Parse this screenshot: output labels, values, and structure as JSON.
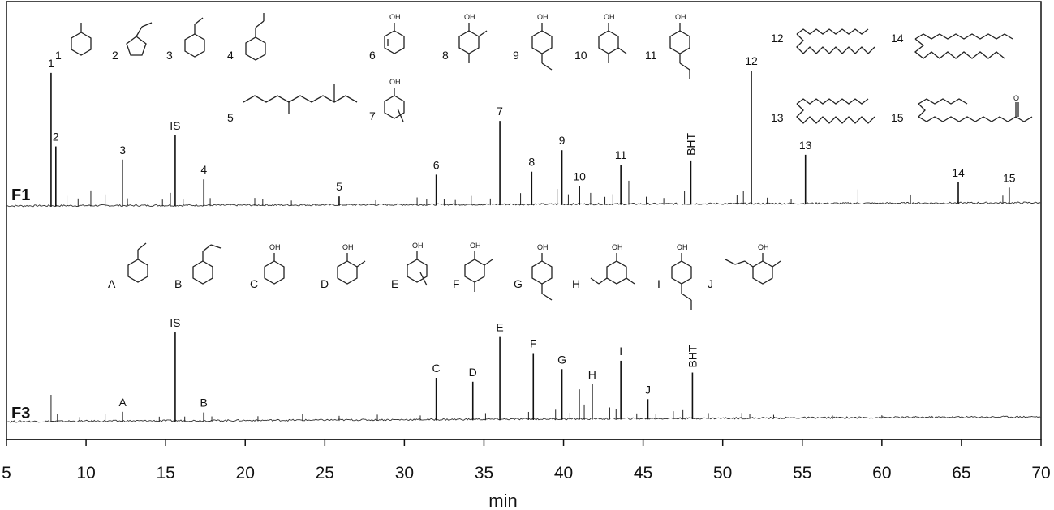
{
  "chart_data": {
    "type": "line",
    "xlabel": "min",
    "xlim": [
      5,
      70
    ],
    "x_ticks": [
      5,
      10,
      15,
      20,
      25,
      30,
      35,
      40,
      45,
      50,
      55,
      60,
      65,
      70
    ],
    "x_tick_labels": [
      "5",
      "10",
      "15",
      "20",
      "25",
      "30",
      "35",
      "40",
      "45",
      "50",
      "55",
      "60",
      "65",
      "70"
    ],
    "traces": [
      {
        "name": "F1",
        "labeled_peaks": [
          {
            "label": "1",
            "x": 7.8,
            "height": 1.0
          },
          {
            "label": "2",
            "x": 8.1,
            "height": 0.45
          },
          {
            "label": "3",
            "x": 12.3,
            "height": 0.35
          },
          {
            "label": "IS",
            "x": 15.6,
            "height": 0.53
          },
          {
            "label": "4",
            "x": 17.4,
            "height": 0.2
          },
          {
            "label": "5",
            "x": 25.9,
            "height": 0.07
          },
          {
            "label": "6",
            "x": 32.0,
            "height": 0.23
          },
          {
            "label": "7",
            "x": 36.0,
            "height": 0.63
          },
          {
            "label": "8",
            "x": 38.0,
            "height": 0.25
          },
          {
            "label": "9",
            "x": 39.9,
            "height": 0.41
          },
          {
            "label": "10",
            "x": 41.0,
            "height": 0.14
          },
          {
            "label": "11",
            "x": 43.6,
            "height": 0.3
          },
          {
            "label": "BHT",
            "x": 48.0,
            "height": 0.33
          },
          {
            "label": "12",
            "x": 51.8,
            "height": 1.0
          },
          {
            "label": "13",
            "x": 55.2,
            "height": 0.37
          },
          {
            "label": "14",
            "x": 64.8,
            "height": 0.16
          },
          {
            "label": "15",
            "x": 68.0,
            "height": 0.12
          }
        ],
        "minor_peaks": [
          [
            8.8,
            0.08
          ],
          [
            9.5,
            0.06
          ],
          [
            10.3,
            0.12
          ],
          [
            11.2,
            0.09
          ],
          [
            12.6,
            0.06
          ],
          [
            14.8,
            0.05
          ],
          [
            15.3,
            0.1
          ],
          [
            16.1,
            0.05
          ],
          [
            17.8,
            0.06
          ],
          [
            20.6,
            0.06
          ],
          [
            21.1,
            0.05
          ],
          [
            22.9,
            0.04
          ],
          [
            28.2,
            0.04
          ],
          [
            30.8,
            0.06
          ],
          [
            31.4,
            0.05
          ],
          [
            32.5,
            0.05
          ],
          [
            33.2,
            0.04
          ],
          [
            34.2,
            0.07
          ],
          [
            35.4,
            0.05
          ],
          [
            37.3,
            0.09
          ],
          [
            39.6,
            0.12
          ],
          [
            40.3,
            0.08
          ],
          [
            41.7,
            0.09
          ],
          [
            42.6,
            0.06
          ],
          [
            43.1,
            0.08
          ],
          [
            44.1,
            0.18
          ],
          [
            45.2,
            0.06
          ],
          [
            46.3,
            0.05
          ],
          [
            47.6,
            0.1
          ],
          [
            50.9,
            0.07
          ],
          [
            51.3,
            0.1
          ],
          [
            52.8,
            0.05
          ],
          [
            54.3,
            0.04
          ],
          [
            58.5,
            0.11
          ],
          [
            61.8,
            0.07
          ],
          [
            67.6,
            0.06
          ]
        ]
      },
      {
        "name": "F3",
        "labeled_peaks": [
          {
            "label": "A",
            "x": 12.3,
            "height": 0.1
          },
          {
            "label": "IS",
            "x": 15.6,
            "height": 0.88
          },
          {
            "label": "B",
            "x": 17.4,
            "height": 0.09
          },
          {
            "label": "C",
            "x": 32.0,
            "height": 0.42
          },
          {
            "label": "D",
            "x": 34.3,
            "height": 0.38
          },
          {
            "label": "E",
            "x": 36.0,
            "height": 0.82
          },
          {
            "label": "F",
            "x": 38.1,
            "height": 0.66
          },
          {
            "label": "G",
            "x": 39.9,
            "height": 0.5
          },
          {
            "label": "H",
            "x": 41.8,
            "height": 0.35
          },
          {
            "label": "I",
            "x": 43.6,
            "height": 0.58
          },
          {
            "label": "J",
            "x": 45.3,
            "height": 0.2
          },
          {
            "label": "BHT",
            "x": 48.1,
            "height": 0.46
          }
        ],
        "minor_peaks": [
          [
            7.8,
            0.27
          ],
          [
            8.2,
            0.08
          ],
          [
            9.6,
            0.05
          ],
          [
            11.2,
            0.08
          ],
          [
            14.6,
            0.05
          ],
          [
            16.2,
            0.05
          ],
          [
            17.9,
            0.05
          ],
          [
            20.8,
            0.05
          ],
          [
            23.6,
            0.07
          ],
          [
            25.9,
            0.05
          ],
          [
            28.3,
            0.06
          ],
          [
            31.0,
            0.05
          ],
          [
            35.1,
            0.07
          ],
          [
            37.8,
            0.08
          ],
          [
            39.5,
            0.1
          ],
          [
            40.4,
            0.07
          ],
          [
            41.0,
            0.3
          ],
          [
            41.3,
            0.15
          ],
          [
            42.9,
            0.12
          ],
          [
            43.3,
            0.1
          ],
          [
            44.6,
            0.06
          ],
          [
            45.8,
            0.05
          ],
          [
            46.9,
            0.08
          ],
          [
            47.5,
            0.09
          ],
          [
            49.1,
            0.06
          ],
          [
            51.2,
            0.06
          ],
          [
            51.7,
            0.05
          ],
          [
            53.2,
            0.04
          ],
          [
            56.9,
            0.03
          ],
          [
            60.0,
            0.03
          ]
        ]
      }
    ]
  },
  "structure_labels": {
    "f1_numbers": [
      "1",
      "2",
      "3",
      "4",
      "5",
      "6",
      "7",
      "8",
      "9",
      "10",
      "11",
      "12",
      "13",
      "14",
      "15"
    ],
    "f3_letters": [
      "A",
      "B",
      "C",
      "D",
      "E",
      "F",
      "G",
      "H",
      "I",
      "J"
    ],
    "oh_label": "OH"
  }
}
